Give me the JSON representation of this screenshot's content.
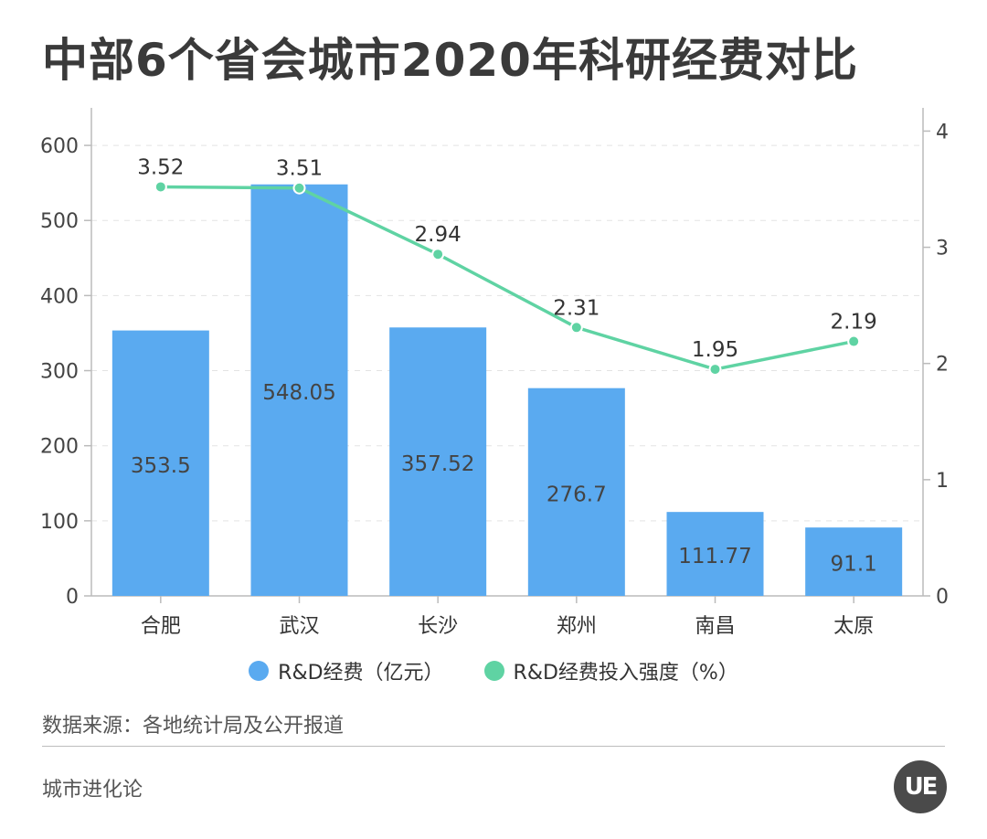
{
  "title": "中部6个省会城市2020年科研经费对比",
  "source_text": "数据来源：各地统计局及公开报道",
  "brand_text": "城市进化论",
  "logo_text": "UE",
  "colors": {
    "bar": "#5aaaf0",
    "line": "#5fd3a3",
    "axis": "#bbbbbb",
    "grid": "#e3e3e3"
  },
  "chart_data": {
    "type": "bar",
    "categories": [
      "合肥",
      "武汉",
      "长沙",
      "郑州",
      "南昌",
      "太原"
    ],
    "series": [
      {
        "name": "R&D经费（亿元）",
        "type": "bar",
        "axis": "left",
        "values": [
          353.5,
          548.05,
          357.52,
          276.7,
          111.77,
          91.1
        ]
      },
      {
        "name": "R&D经费投入强度（%）",
        "type": "line",
        "axis": "right",
        "values": [
          3.52,
          3.51,
          2.94,
          2.31,
          1.95,
          2.19
        ]
      }
    ],
    "y_left": {
      "lim": [
        0,
        650
      ],
      "ticks": [
        0,
        100,
        200,
        300,
        400,
        500,
        600
      ]
    },
    "y_right": {
      "lim": [
        0,
        4.2
      ],
      "ticks": [
        0,
        1,
        2,
        3,
        4
      ]
    },
    "grid": true,
    "legend": "bottom-center"
  }
}
